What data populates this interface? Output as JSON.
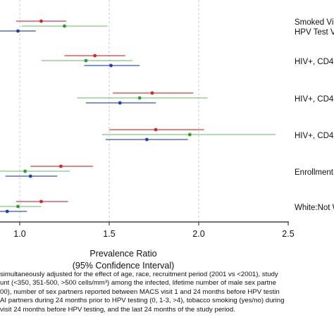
{
  "chart_data": {
    "type": "forest",
    "xlabel": [
      "Prevalence Ratio",
      "(95% Confidence Interval)"
    ],
    "xlim": [
      0.9,
      2.5
    ],
    "x_ticks": [
      1.0,
      1.5,
      2.0,
      2.5
    ],
    "x_tick_labels": [
      "1.0",
      "1.5",
      "2.0",
      "2.5"
    ],
    "reference_lines": [
      1.0,
      1.5,
      2.0
    ],
    "series_colors": [
      "#d62728",
      "#2ca02c",
      "#1f3fbf"
    ],
    "rows": [
      {
        "label": "Smoked Vi",
        "label2": "HPV Test V",
        "estimates": [
          {
            "pr": 1.12,
            "lo": 0.98,
            "hi": 1.26
          },
          {
            "pr": 1.25,
            "lo": 1.01,
            "hi": 1.49
          },
          {
            "pr": 0.99,
            "lo": 0.87,
            "hi": 1.09
          }
        ]
      },
      {
        "label": "HIV+, CD4",
        "label2": "",
        "estimates": [
          {
            "pr": 1.42,
            "lo": 1.25,
            "hi": 1.59
          },
          {
            "pr": 1.37,
            "lo": 1.12,
            "hi": 1.63
          },
          {
            "pr": 1.51,
            "lo": 1.36,
            "hi": 1.67
          }
        ]
      },
      {
        "label": "HIV+, CD4",
        "label2": "",
        "estimates": [
          {
            "pr": 1.74,
            "lo": 1.52,
            "hi": 1.97
          },
          {
            "pr": 1.67,
            "lo": 1.32,
            "hi": 2.05
          },
          {
            "pr": 1.56,
            "lo": 1.37,
            "hi": 1.76
          }
        ]
      },
      {
        "label": "HIV+, CD4",
        "label2": "",
        "estimates": [
          {
            "pr": 1.76,
            "lo": 1.5,
            "hi": 2.03
          },
          {
            "pr": 1.95,
            "lo": 1.46,
            "hi": 2.43
          },
          {
            "pr": 1.71,
            "lo": 1.48,
            "hi": 1.94
          }
        ]
      },
      {
        "label": "Enrollment",
        "label2": "",
        "estimates": [
          {
            "pr": 1.23,
            "lo": 1.06,
            "hi": 1.41
          },
          {
            "pr": 1.03,
            "lo": 0.85,
            "hi": 1.28
          },
          {
            "pr": 1.06,
            "lo": 0.92,
            "hi": 1.21
          }
        ]
      },
      {
        "label": "White:Not W",
        "label2": "",
        "estimates": [
          {
            "pr": 1.12,
            "lo": 0.98,
            "hi": 1.27
          },
          {
            "pr": 0.99,
            "lo": 0.88,
            "hi": 1.12
          },
          {
            "pr": 0.93,
            "lo": 0.84,
            "hi": 1.04
          }
        ]
      }
    ]
  },
  "footnote": [
    "simultaneously adjusted for the effect of age, race, recruitment period (2001 vs <2001), study",
    "unt (<350, 351-500, >500 cells/mm³) among the infected, lifetime number of male sex partne",
    "00), number of sex partners reported between MACS visit 1 and 24 months before HPV testin",
    "AI partners during 24 months prior to HPV testing (0, 1-3, >4), tobacco smoking (yes/no) during",
    "visit 24 months before HPV testing, and the last 24 months of the study period."
  ]
}
